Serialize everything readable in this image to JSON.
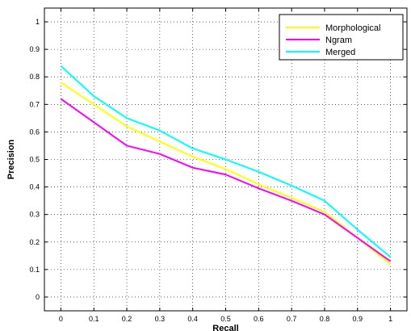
{
  "chart_data": {
    "type": "line",
    "title": "",
    "xlabel": "Recall",
    "ylabel": "Precision",
    "xlim": [
      -0.05,
      1.05
    ],
    "ylim": [
      -0.05,
      1.05
    ],
    "grid": true,
    "legend_position": "top-right",
    "x": [
      0,
      0.1,
      0.2,
      0.3,
      0.4,
      0.5,
      0.6,
      0.7,
      0.8,
      0.9,
      1
    ],
    "x_ticks": [
      "0",
      "0.1",
      "0.2",
      "0.3",
      "0.4",
      "0.5",
      "0.6",
      "0.7",
      "0.8",
      "0.9",
      "1"
    ],
    "y_ticks": [
      "0",
      "0.1",
      "0.2",
      "0.3",
      "0.4",
      "0.5",
      "0.6",
      "0.7",
      "0.8",
      "0.9",
      "1"
    ],
    "series": [
      {
        "name": "Morphological",
        "color": "#ffff00",
        "values": [
          0.78,
          0.7,
          0.62,
          0.565,
          0.51,
          0.465,
          0.41,
          0.36,
          0.31,
          0.215,
          0.12
        ]
      },
      {
        "name": "Ngram",
        "color": "#ff00ff",
        "values": [
          0.72,
          0.635,
          0.55,
          0.52,
          0.47,
          0.445,
          0.395,
          0.35,
          0.3,
          0.215,
          0.13
        ]
      },
      {
        "name": "Merged",
        "color": "#00ffff",
        "values": [
          0.84,
          0.73,
          0.65,
          0.605,
          0.54,
          0.5,
          0.455,
          0.405,
          0.35,
          0.245,
          0.145
        ]
      }
    ]
  }
}
